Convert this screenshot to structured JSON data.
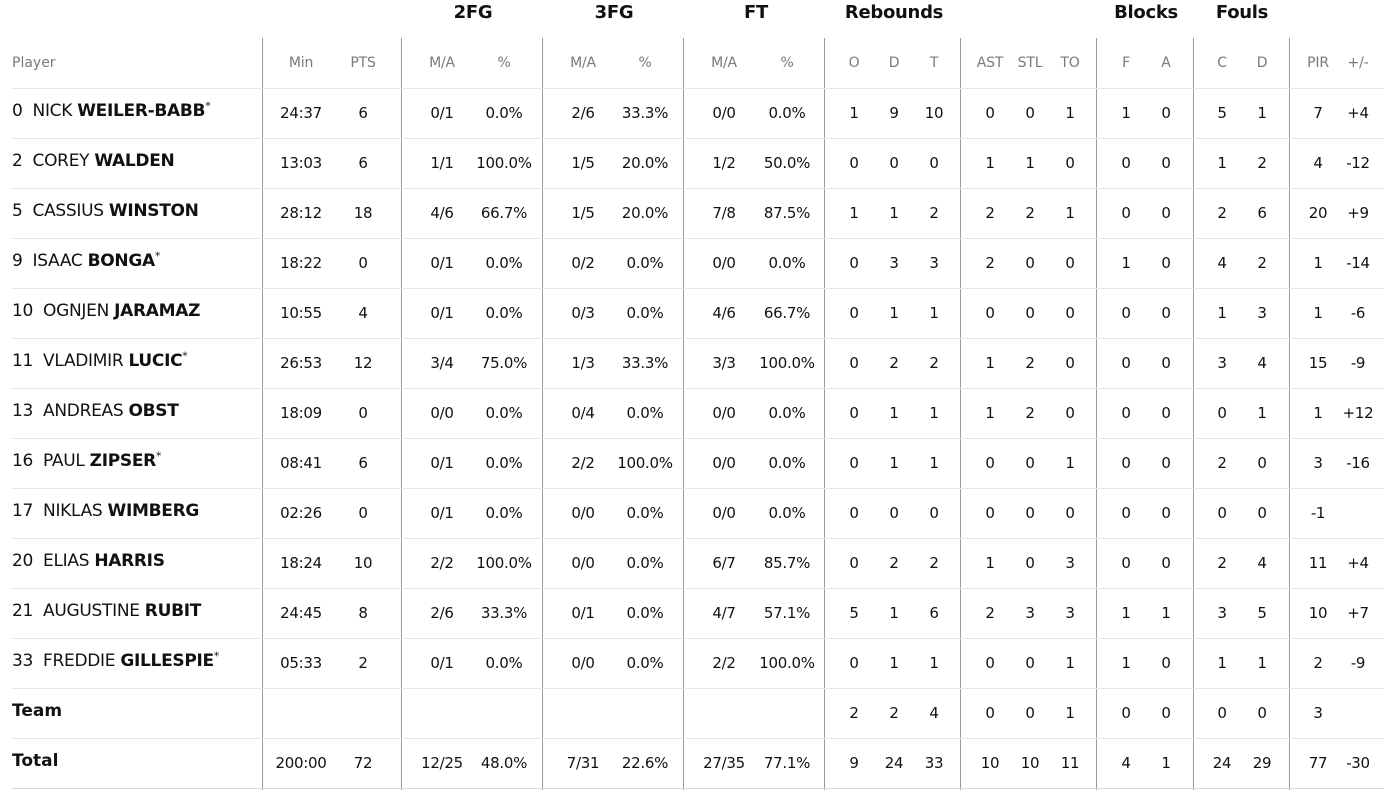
{
  "groups": {
    "fg2": "2FG",
    "fg3": "3FG",
    "ft": "FT",
    "rebounds": "Rebounds",
    "blocks": "Blocks",
    "fouls": "Fouls"
  },
  "headers": {
    "player": "Player",
    "min": "Min",
    "pts": "PTS",
    "fg2_ma": "M/A",
    "fg2_pct": "%",
    "fg3_ma": "M/A",
    "fg3_pct": "%",
    "ft_ma": "M/A",
    "ft_pct": "%",
    "reb_o": "O",
    "reb_d": "D",
    "reb_t": "T",
    "ast": "AST",
    "stl": "STL",
    "to": "TO",
    "blk_f": "F",
    "blk_a": "A",
    "foul_c": "C",
    "foul_d": "D",
    "pir": "PIR",
    "pm": "+/-"
  },
  "players": [
    {
      "number": "0",
      "first": "NICK",
      "last": "WEILER-BABB",
      "starter": true,
      "min": "24:37",
      "pts": "6",
      "fg2_ma": "0/1",
      "fg2_pct": "0.0%",
      "fg3_ma": "2/6",
      "fg3_pct": "33.3%",
      "ft_ma": "0/0",
      "ft_pct": "0.0%",
      "reb_o": "1",
      "reb_d": "9",
      "reb_t": "10",
      "ast": "0",
      "stl": "0",
      "to": "1",
      "blk_f": "1",
      "blk_a": "0",
      "foul_c": "5",
      "foul_d": "1",
      "pir": "7",
      "pm": "+4"
    },
    {
      "number": "2",
      "first": "COREY",
      "last": "WALDEN",
      "starter": false,
      "min": "13:03",
      "pts": "6",
      "fg2_ma": "1/1",
      "fg2_pct": "100.0%",
      "fg3_ma": "1/5",
      "fg3_pct": "20.0%",
      "ft_ma": "1/2",
      "ft_pct": "50.0%",
      "reb_o": "0",
      "reb_d": "0",
      "reb_t": "0",
      "ast": "1",
      "stl": "1",
      "to": "0",
      "blk_f": "0",
      "blk_a": "0",
      "foul_c": "1",
      "foul_d": "2",
      "pir": "4",
      "pm": "-12"
    },
    {
      "number": "5",
      "first": "CASSIUS",
      "last": "WINSTON",
      "starter": false,
      "min": "28:12",
      "pts": "18",
      "fg2_ma": "4/6",
      "fg2_pct": "66.7%",
      "fg3_ma": "1/5",
      "fg3_pct": "20.0%",
      "ft_ma": "7/8",
      "ft_pct": "87.5%",
      "reb_o": "1",
      "reb_d": "1",
      "reb_t": "2",
      "ast": "2",
      "stl": "2",
      "to": "1",
      "blk_f": "0",
      "blk_a": "0",
      "foul_c": "2",
      "foul_d": "6",
      "pir": "20",
      "pm": "+9"
    },
    {
      "number": "9",
      "first": "ISAAC",
      "last": "BONGA",
      "starter": true,
      "min": "18:22",
      "pts": "0",
      "fg2_ma": "0/1",
      "fg2_pct": "0.0%",
      "fg3_ma": "0/2",
      "fg3_pct": "0.0%",
      "ft_ma": "0/0",
      "ft_pct": "0.0%",
      "reb_o": "0",
      "reb_d": "3",
      "reb_t": "3",
      "ast": "2",
      "stl": "0",
      "to": "0",
      "blk_f": "1",
      "blk_a": "0",
      "foul_c": "4",
      "foul_d": "2",
      "pir": "1",
      "pm": "-14"
    },
    {
      "number": "10",
      "first": "OGNJEN",
      "last": "JARAMAZ",
      "starter": false,
      "min": "10:55",
      "pts": "4",
      "fg2_ma": "0/1",
      "fg2_pct": "0.0%",
      "fg3_ma": "0/3",
      "fg3_pct": "0.0%",
      "ft_ma": "4/6",
      "ft_pct": "66.7%",
      "reb_o": "0",
      "reb_d": "1",
      "reb_t": "1",
      "ast": "0",
      "stl": "0",
      "to": "0",
      "blk_f": "0",
      "blk_a": "0",
      "foul_c": "1",
      "foul_d": "3",
      "pir": "1",
      "pm": "-6"
    },
    {
      "number": "11",
      "first": "VLADIMIR",
      "last": "LUCIC",
      "starter": true,
      "min": "26:53",
      "pts": "12",
      "fg2_ma": "3/4",
      "fg2_pct": "75.0%",
      "fg3_ma": "1/3",
      "fg3_pct": "33.3%",
      "ft_ma": "3/3",
      "ft_pct": "100.0%",
      "reb_o": "0",
      "reb_d": "2",
      "reb_t": "2",
      "ast": "1",
      "stl": "2",
      "to": "0",
      "blk_f": "0",
      "blk_a": "0",
      "foul_c": "3",
      "foul_d": "4",
      "pir": "15",
      "pm": "-9"
    },
    {
      "number": "13",
      "first": "ANDREAS",
      "last": "OBST",
      "starter": false,
      "min": "18:09",
      "pts": "0",
      "fg2_ma": "0/0",
      "fg2_pct": "0.0%",
      "fg3_ma": "0/4",
      "fg3_pct": "0.0%",
      "ft_ma": "0/0",
      "ft_pct": "0.0%",
      "reb_o": "0",
      "reb_d": "1",
      "reb_t": "1",
      "ast": "1",
      "stl": "2",
      "to": "0",
      "blk_f": "0",
      "blk_a": "0",
      "foul_c": "0",
      "foul_d": "1",
      "pir": "1",
      "pm": "+12"
    },
    {
      "number": "16",
      "first": "PAUL",
      "last": "ZIPSER",
      "starter": true,
      "min": "08:41",
      "pts": "6",
      "fg2_ma": "0/1",
      "fg2_pct": "0.0%",
      "fg3_ma": "2/2",
      "fg3_pct": "100.0%",
      "ft_ma": "0/0",
      "ft_pct": "0.0%",
      "reb_o": "0",
      "reb_d": "1",
      "reb_t": "1",
      "ast": "0",
      "stl": "0",
      "to": "1",
      "blk_f": "0",
      "blk_a": "0",
      "foul_c": "2",
      "foul_d": "0",
      "pir": "3",
      "pm": "-16"
    },
    {
      "number": "17",
      "first": "NIKLAS",
      "last": "WIMBERG",
      "starter": false,
      "min": "02:26",
      "pts": "0",
      "fg2_ma": "0/1",
      "fg2_pct": "0.0%",
      "fg3_ma": "0/0",
      "fg3_pct": "0.0%",
      "ft_ma": "0/0",
      "ft_pct": "0.0%",
      "reb_o": "0",
      "reb_d": "0",
      "reb_t": "0",
      "ast": "0",
      "stl": "0",
      "to": "0",
      "blk_f": "0",
      "blk_a": "0",
      "foul_c": "0",
      "foul_d": "0",
      "pir": "-1",
      "pm": ""
    },
    {
      "number": "20",
      "first": "ELIAS",
      "last": "HARRIS",
      "starter": false,
      "min": "18:24",
      "pts": "10",
      "fg2_ma": "2/2",
      "fg2_pct": "100.0%",
      "fg3_ma": "0/0",
      "fg3_pct": "0.0%",
      "ft_ma": "6/7",
      "ft_pct": "85.7%",
      "reb_o": "0",
      "reb_d": "2",
      "reb_t": "2",
      "ast": "1",
      "stl": "0",
      "to": "3",
      "blk_f": "0",
      "blk_a": "0",
      "foul_c": "2",
      "foul_d": "4",
      "pir": "11",
      "pm": "+4"
    },
    {
      "number": "21",
      "first": "AUGUSTINE",
      "last": "RUBIT",
      "starter": false,
      "min": "24:45",
      "pts": "8",
      "fg2_ma": "2/6",
      "fg2_pct": "33.3%",
      "fg3_ma": "0/1",
      "fg3_pct": "0.0%",
      "ft_ma": "4/7",
      "ft_pct": "57.1%",
      "reb_o": "5",
      "reb_d": "1",
      "reb_t": "6",
      "ast": "2",
      "stl": "3",
      "to": "3",
      "blk_f": "1",
      "blk_a": "1",
      "foul_c": "3",
      "foul_d": "5",
      "pir": "10",
      "pm": "+7"
    },
    {
      "number": "33",
      "first": "FREDDIE",
      "last": "GILLESPIE",
      "starter": true,
      "min": "05:33",
      "pts": "2",
      "fg2_ma": "0/1",
      "fg2_pct": "0.0%",
      "fg3_ma": "0/0",
      "fg3_pct": "0.0%",
      "ft_ma": "2/2",
      "ft_pct": "100.0%",
      "reb_o": "0",
      "reb_d": "1",
      "reb_t": "1",
      "ast": "0",
      "stl": "0",
      "to": "1",
      "blk_f": "1",
      "blk_a": "0",
      "foul_c": "1",
      "foul_d": "1",
      "pir": "2",
      "pm": "-9"
    }
  ],
  "starter_mark": "*",
  "team": {
    "label": "Team",
    "min": "",
    "pts": "",
    "fg2_ma": "",
    "fg2_pct": "",
    "fg3_ma": "",
    "fg3_pct": "",
    "ft_ma": "",
    "ft_pct": "",
    "reb_o": "2",
    "reb_d": "2",
    "reb_t": "4",
    "ast": "0",
    "stl": "0",
    "to": "1",
    "blk_f": "0",
    "blk_a": "0",
    "foul_c": "0",
    "foul_d": "0",
    "pir": "3",
    "pm": ""
  },
  "total": {
    "label": "Total",
    "min": "200:00",
    "pts": "72",
    "fg2_ma": "12/25",
    "fg2_pct": "48.0%",
    "fg3_ma": "7/31",
    "fg3_pct": "22.6%",
    "ft_ma": "27/35",
    "ft_pct": "77.1%",
    "reb_o": "9",
    "reb_d": "24",
    "reb_t": "33",
    "ast": "10",
    "stl": "10",
    "to": "11",
    "blk_f": "4",
    "blk_a": "1",
    "foul_c": "24",
    "foul_d": "29",
    "pir": "77",
    "pm": "-30"
  }
}
